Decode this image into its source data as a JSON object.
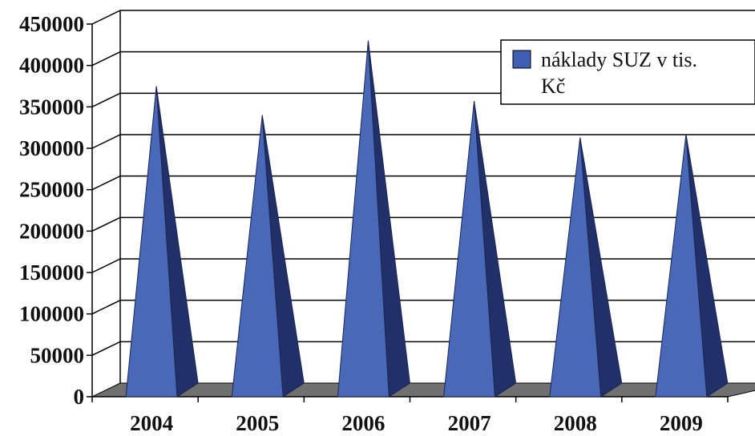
{
  "chart_data": {
    "type": "bar",
    "shape": "3d-pyramid",
    "categories": [
      "2004",
      "2005",
      "2006",
      "2007",
      "2008",
      "2009"
    ],
    "series": [
      {
        "name": "náklady SUZ v tis. Kč",
        "values": [
          370000,
          335000,
          425000,
          352000,
          308000,
          312000
        ]
      }
    ],
    "y_ticks": [
      "0",
      "50000",
      "100000",
      "150000",
      "200000",
      "250000",
      "300000",
      "350000",
      "400000",
      "450000"
    ],
    "ylim": [
      0,
      450000
    ],
    "grid": true,
    "legend": {
      "placement": "top-right",
      "lines": [
        "náklady SUZ v tis.",
        "Kč"
      ]
    },
    "colors": {
      "bar_front": "#4a68b8",
      "bar_side": "#22306a",
      "floor": "#707070",
      "grid": "#000000",
      "legend_swatch": "#3f5fb5"
    }
  }
}
